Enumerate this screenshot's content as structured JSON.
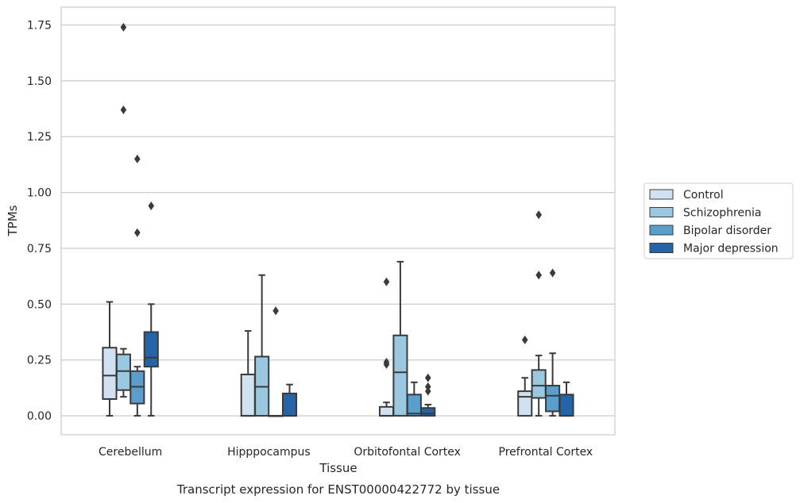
{
  "chart_data": {
    "type": "box",
    "title": "Transcript expression for ENST00000422772 by tissue",
    "xlabel": "Tissue",
    "ylabel": "TPMs",
    "ylim": [
      -0.085,
      1.83
    ],
    "yticks": [
      "0.00",
      "0.25",
      "0.50",
      "0.75",
      "1.00",
      "1.25",
      "1.50",
      "1.75"
    ],
    "grid": "horizontal",
    "legend_position": "right",
    "categories": [
      "Cerebellum",
      "Hipppocampus",
      "Orbitofontal Cortex",
      "Prefrontal Cortex"
    ],
    "series": [
      {
        "name": "Control",
        "color": "#d0e1f2",
        "boxes": [
          {
            "whislo": 0.0,
            "q1": 0.075,
            "med": 0.18,
            "q3": 0.305,
            "whishi": 0.51,
            "fliers": []
          },
          {
            "whislo": 0.0,
            "q1": 0.0,
            "med": 0.0,
            "q3": 0.185,
            "whishi": 0.38,
            "fliers": []
          },
          {
            "whislo": 0.0,
            "q1": 0.0,
            "med": 0.0,
            "q3": 0.04,
            "whishi": 0.06,
            "fliers": [
              0.6,
              0.24,
              0.23
            ]
          },
          {
            "whislo": 0.0,
            "q1": 0.0,
            "med": 0.085,
            "q3": 0.11,
            "whishi": 0.17,
            "fliers": [
              0.34
            ]
          }
        ]
      },
      {
        "name": "Schizophrenia",
        "color": "#9ac8e0",
        "boxes": [
          {
            "whislo": 0.085,
            "q1": 0.115,
            "med": 0.2,
            "q3": 0.275,
            "whishi": 0.3,
            "fliers": [
              1.74,
              1.37
            ]
          },
          {
            "whislo": 0.0,
            "q1": 0.0,
            "med": 0.13,
            "q3": 0.265,
            "whishi": 0.63,
            "fliers": []
          },
          {
            "whislo": 0.0,
            "q1": 0.0,
            "med": 0.195,
            "q3": 0.36,
            "whishi": 0.69,
            "fliers": []
          },
          {
            "whislo": 0.0,
            "q1": 0.08,
            "med": 0.135,
            "q3": 0.205,
            "whishi": 0.27,
            "fliers": [
              0.9,
              0.63
            ]
          }
        ]
      },
      {
        "name": "Bipolar disorder",
        "color": "#5a9ecd",
        "boxes": [
          {
            "whislo": 0.0,
            "q1": 0.055,
            "med": 0.13,
            "q3": 0.2,
            "whishi": 0.22,
            "fliers": [
              1.15,
              0.82
            ]
          },
          {
            "whislo": 0.0,
            "q1": 0.0,
            "med": 0.0,
            "q3": 0.0,
            "whishi": 0.0,
            "fliers": [
              0.47
            ]
          },
          {
            "whislo": 0.0,
            "q1": 0.0,
            "med": 0.01,
            "q3": 0.095,
            "whishi": 0.15,
            "fliers": []
          },
          {
            "whislo": 0.0,
            "q1": 0.02,
            "med": 0.09,
            "q3": 0.135,
            "whishi": 0.28,
            "fliers": [
              0.64
            ]
          }
        ]
      },
      {
        "name": "Major depression",
        "color": "#2464a8",
        "boxes": [
          {
            "whislo": 0.0,
            "q1": 0.22,
            "med": 0.26,
            "q3": 0.375,
            "whishi": 0.5,
            "fliers": [
              0.94
            ]
          },
          {
            "whislo": 0.0,
            "q1": 0.0,
            "med": 0.0,
            "q3": 0.1,
            "whishi": 0.14,
            "fliers": []
          },
          {
            "whislo": 0.0,
            "q1": 0.0,
            "med": 0.01,
            "q3": 0.035,
            "whishi": 0.05,
            "fliers": [
              0.17,
              0.13,
              0.11
            ]
          },
          {
            "whislo": 0.0,
            "q1": 0.0,
            "med": 0.0,
            "q3": 0.095,
            "whishi": 0.15,
            "fliers": []
          }
        ]
      }
    ]
  },
  "colors": {
    "frame": "#cccccc",
    "grid": "#cccccc",
    "box_edge": "#3a3a3a"
  }
}
